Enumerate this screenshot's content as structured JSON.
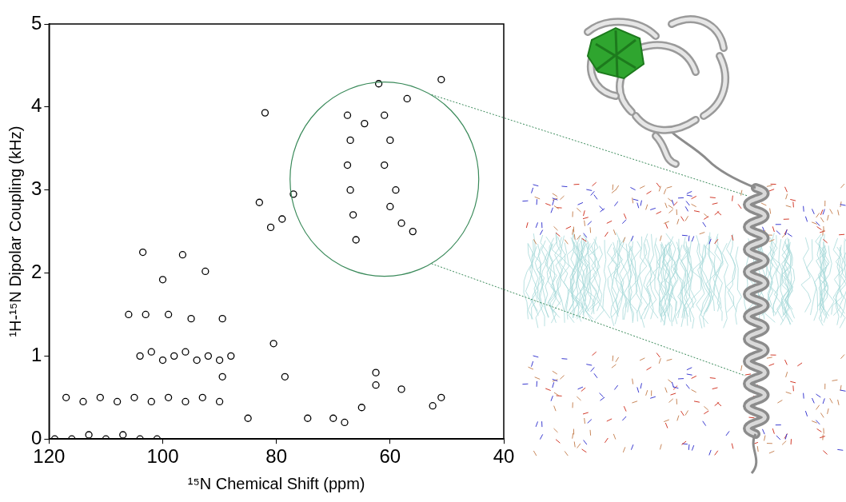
{
  "chart_data": {
    "type": "scatter",
    "x_label": "¹⁵N Chemical Shift (ppm)",
    "y_label": "¹H-¹⁵N Dipolar Coupling (kHz)",
    "x": [
      67.5,
      67,
      67.5,
      67,
      66.5,
      66,
      64.5,
      61,
      60,
      61,
      59,
      60,
      58,
      56,
      62,
      57,
      51,
      82,
      83,
      77,
      79,
      81,
      103.5,
      96.5,
      92.5,
      100,
      106,
      103,
      99,
      95,
      89.5,
      80.5,
      78.5,
      74.5,
      70,
      68,
      65,
      62.5,
      62.5,
      58,
      51,
      52.5,
      85,
      89.5,
      104,
      102,
      100,
      98,
      96,
      94,
      92,
      90,
      88,
      117,
      114,
      111,
      108,
      105,
      102,
      99,
      96,
      93,
      90,
      119,
      116,
      113,
      110,
      107,
      104,
      101
    ],
    "values": [
      3.9,
      3.6,
      3.3,
      3.0,
      2.7,
      2.4,
      3.8,
      3.9,
      3.6,
      3.3,
      3.0,
      2.8,
      2.6,
      2.5,
      4.28,
      4.1,
      4.33,
      3.93,
      2.85,
      2.95,
      2.65,
      2.55,
      2.25,
      2.22,
      2.02,
      1.92,
      1.5,
      1.5,
      1.5,
      1.45,
      1.45,
      1.15,
      0.75,
      0.25,
      0.25,
      0.2,
      0.38,
      0.8,
      0.65,
      0.6,
      0.5,
      0.4,
      0.25,
      0.75,
      1.0,
      1.05,
      0.95,
      1.0,
      1.05,
      0.95,
      1.0,
      0.95,
      1.0,
      0.5,
      0.45,
      0.5,
      0.45,
      0.5,
      0.45,
      0.5,
      0.45,
      0.5,
      0.45,
      0.0,
      0.0,
      0.05,
      0.0,
      0.05,
      0.0,
      0.0
    ],
    "color": "#000000",
    "marker": "circle",
    "xlim": [
      120,
      40
    ],
    "xticks": [
      120,
      100,
      80,
      60,
      40
    ],
    "ylim": [
      0,
      5
    ],
    "yticks": [
      0,
      1,
      2,
      3,
      4,
      5
    ],
    "grid": false,
    "circle": {
      "x": 61,
      "y": 3.13,
      "x_radius": 16.6,
      "y_radius": 1.17,
      "color": "#3a8a5a"
    }
  }
}
